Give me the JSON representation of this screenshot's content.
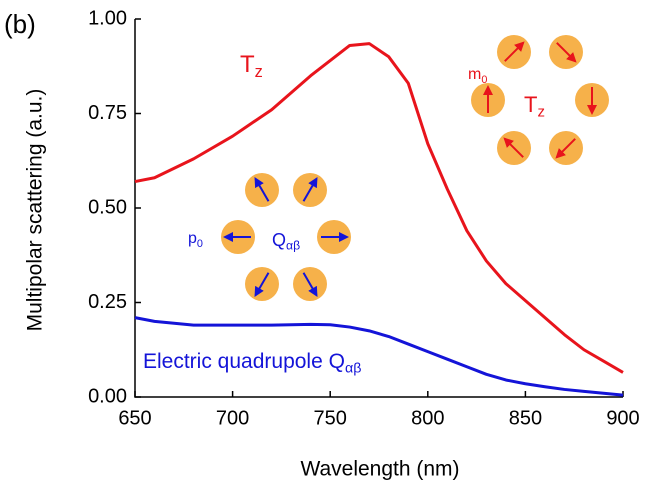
{
  "chart_data": {
    "type": "line",
    "x_label": "Wavelength (nm)",
    "y_label": "Multipolar scattering (a.u.)",
    "x": [
      650,
      660,
      680,
      700,
      720,
      740,
      750,
      760,
      770,
      780,
      790,
      800,
      810,
      820,
      830,
      840,
      850,
      860,
      870,
      880,
      890,
      900
    ],
    "series": [
      {
        "color": "#e8141c",
        "values": [
          0.57,
          0.58,
          0.63,
          0.69,
          0.76,
          0.85,
          0.89,
          0.93,
          0.935,
          0.9,
          0.83,
          0.67,
          0.55,
          0.44,
          0.36,
          0.3,
          0.255,
          0.21,
          0.165,
          0.125,
          0.095,
          0.065
        ]
      },
      {
        "color": "#1414d8",
        "values": [
          0.21,
          0.2,
          0.19,
          0.19,
          0.19,
          0.192,
          0.191,
          0.185,
          0.175,
          0.16,
          0.14,
          0.12,
          0.1,
          0.08,
          0.06,
          0.045,
          0.035,
          0.027,
          0.02,
          0.015,
          0.01,
          0.005
        ]
      }
    ],
    "xlim": [
      650,
      900
    ],
    "ylim": [
      0,
      1
    ],
    "xticks": [
      650,
      700,
      750,
      800,
      850,
      900
    ],
    "yticks": [
      {
        "value": 0,
        "label": "0.00"
      },
      {
        "value": 0.25,
        "label": "0.25"
      },
      {
        "value": 0.5,
        "label": "0.50"
      },
      {
        "value": 0.75,
        "label": "0.75"
      },
      {
        "value": 1,
        "label": "1.00"
      }
    ],
    "annotations": [
      {
        "text": "(b)",
        "color": "#000000"
      },
      {
        "text": "T",
        "sub": "z",
        "color": "#e8141c"
      },
      {
        "text": "m",
        "sub": "0",
        "color": "#e8141c"
      },
      {
        "text": "T",
        "sub": "z",
        "color": "#e8141c"
      },
      {
        "text": "p",
        "sub": "0",
        "color": "#1414d8"
      },
      {
        "text": "Q",
        "sub": "αβ",
        "color": "#1414d8"
      },
      {
        "text": "Electric quadrupole Q",
        "sub": "αβ",
        "color": "#1414d8"
      }
    ]
  }
}
